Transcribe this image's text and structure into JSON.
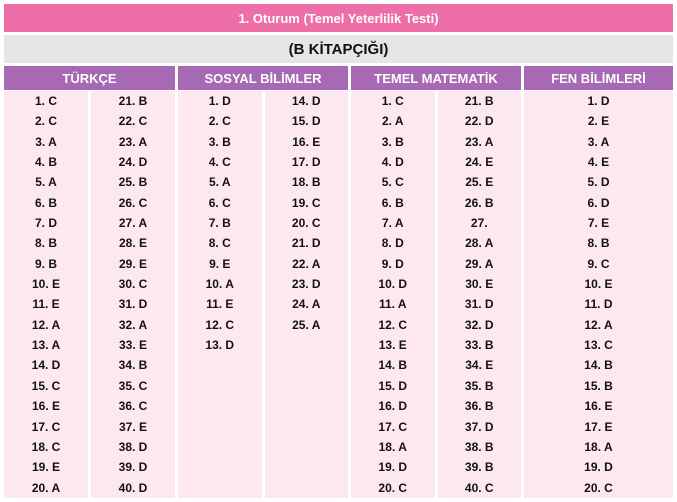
{
  "title": "1. Oturum (Temel Yeterlilik Testi)",
  "subtitle": "(B KİTAPÇIĞI)",
  "sections": [
    {
      "name": "TÜRKÇE",
      "columns": [
        [
          "1. C",
          "2. C",
          "3. A",
          "4. B",
          "5. A",
          "6. B",
          "7. D",
          "8. B",
          "9. B",
          "10. E",
          "11. E",
          "12. A",
          "13. A",
          "14. D",
          "15. C",
          "16. E",
          "17. C",
          "18. C",
          "19. E",
          "20. A"
        ],
        [
          "21. B",
          "22. C",
          "23. A",
          "24. D",
          "25. B",
          "26. C",
          "27. A",
          "28. E",
          "29. E",
          "30. C",
          "31. D",
          "32. A",
          "33. E",
          "34. B",
          "35. C",
          "36. C",
          "37. E",
          "38. D",
          "39. D",
          "40. D"
        ]
      ]
    },
    {
      "name": "SOSYAL BİLİMLER",
      "columns": [
        [
          "1. D",
          "2. C",
          "3. B",
          "4. C",
          "5. A",
          "6. C",
          "7. B",
          "8. C",
          "9. E",
          "10. A",
          "11. E",
          "12. C",
          "13. D"
        ],
        [
          "14. D",
          "15. D",
          "16. E",
          "17. D",
          "18. B",
          "19. C",
          "20. C",
          "21. D",
          "22. A",
          "23. D",
          "24. A",
          "25. A"
        ]
      ]
    },
    {
      "name": "TEMEL MATEMATİK",
      "columns": [
        [
          "1. C",
          "2. A",
          "3. B",
          "4. D",
          "5. C",
          "6. B",
          "7. A",
          "8. D",
          "9. D",
          "10. D",
          "11. A",
          "12. C",
          "13. E",
          "14. B",
          "15. D",
          "16. D",
          "17. C",
          "18. A",
          "19. D",
          "20. C"
        ],
        [
          "21. B",
          "22. D",
          "23. A",
          "24. E",
          "25. E",
          "26. B",
          "27.",
          "28. A",
          "29. A",
          "30. E",
          "31. D",
          "32. D",
          "33. B",
          "34. E",
          "35. B",
          "36. B",
          "37. D",
          "38. B",
          "39. B",
          "40. C"
        ]
      ]
    },
    {
      "name": "FEN BİLİMLERİ",
      "columns": [
        [
          "1. D",
          "2. E",
          "3. A",
          "4. E",
          "5. D",
          "6. D",
          "7. E",
          "8. B",
          "9. C",
          "10. E",
          "11. D",
          "12. A",
          "13. C",
          "14. B",
          "15. B",
          "16. E",
          "17. E",
          "18. A",
          "19. D",
          "20. C"
        ]
      ]
    }
  ]
}
